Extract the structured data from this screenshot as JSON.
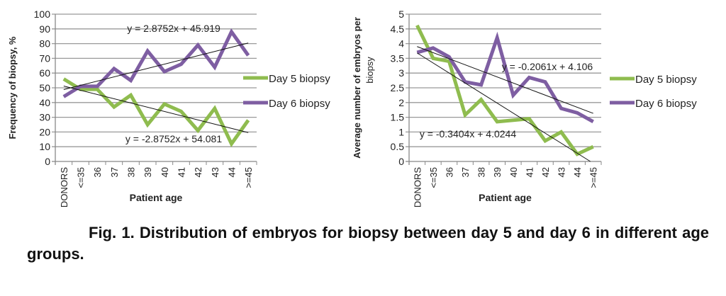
{
  "chart_data": [
    {
      "type": "line",
      "title": "",
      "xlabel": "Patient age",
      "ylabel": "Frequency of biopsy, %",
      "ylim": [
        0,
        100
      ],
      "ystep": 10,
      "yticks": [
        "0",
        "10",
        "20",
        "30",
        "40",
        "50",
        "60",
        "70",
        "80",
        "90",
        "100"
      ],
      "categories": [
        "DONORS",
        "<=35",
        "36",
        "37",
        "38",
        "39",
        "40",
        "41",
        "42",
        "43",
        "44",
        ">=45"
      ],
      "grid": true,
      "legend_position": "right",
      "series": [
        {
          "name": "Day 5 biopsy",
          "color": "#8fbc4f",
          "values": [
            56,
            49,
            49,
            37,
            45,
            25,
            39,
            34,
            21,
            36,
            12,
            28
          ]
        },
        {
          "name": "Day 6 biopsy",
          "color": "#7e5ea2",
          "values": [
            44,
            51,
            51,
            63,
            55,
            75,
            61,
            66,
            79,
            64,
            88,
            72
          ]
        }
      ],
      "trendlines": [
        {
          "label": "y = 2.8752x + 45.919",
          "slope": 2.8752,
          "intercept": 45.919
        },
        {
          "label": "y = -2.8752x + 54.081",
          "slope": -2.8752,
          "intercept": 54.081
        }
      ]
    },
    {
      "type": "line",
      "title": "",
      "xlabel": "Patient age",
      "ylabel": "Average number of embryos per biopsy",
      "ylabel_lines": [
        "Average number of embryos per",
        "biopsy"
      ],
      "ylim": [
        0,
        5
      ],
      "ystep": 0.5,
      "yticks": [
        "0",
        "0.5",
        "1",
        "1.5",
        "2",
        "2.5",
        "3",
        "3.5",
        "4",
        "4.5",
        "5"
      ],
      "categories": [
        "DONORS",
        "<=35",
        "36",
        "37",
        "38",
        "39",
        "40",
        "41",
        "42",
        "43",
        "44",
        ">=45"
      ],
      "grid": true,
      "legend_position": "right",
      "series": [
        {
          "name": "Day 5 biopsy",
          "color": "#8fbc4f",
          "values": [
            4.62,
            3.5,
            3.4,
            1.58,
            2.1,
            1.35,
            1.4,
            1.45,
            0.7,
            1.0,
            0.25,
            0.5
          ]
        },
        {
          "name": "Day 6 biopsy",
          "color": "#7e5ea2",
          "values": [
            3.7,
            3.85,
            3.55,
            2.7,
            2.6,
            4.2,
            2.25,
            2.85,
            2.7,
            1.8,
            1.65,
            1.35
          ]
        }
      ],
      "trendlines": [
        {
          "label": "y = -0.2061x + 4.106",
          "slope": -0.2061,
          "intercept": 4.106
        },
        {
          "label": "y = -0.3404x + 4.0244",
          "slope": -0.3404,
          "intercept": 4.0244
        }
      ]
    }
  ],
  "caption": "Fig. 1. Distribution of embryos for biopsy between day 5 and day 6 in different age groups."
}
